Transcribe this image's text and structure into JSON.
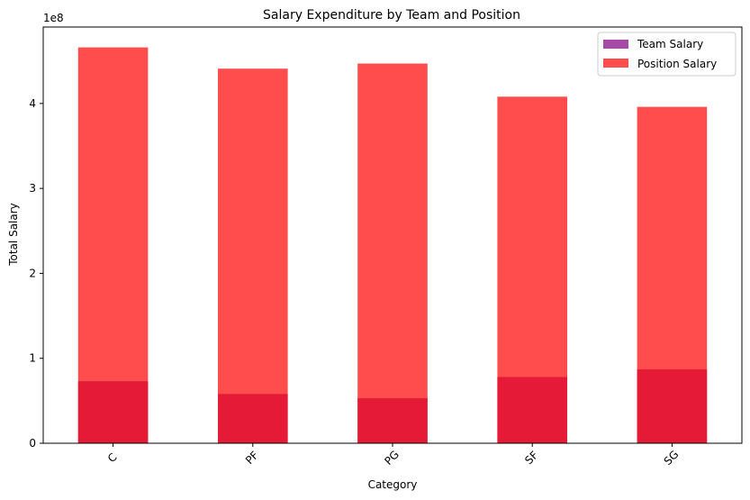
{
  "chart_data": {
    "type": "bar",
    "title": "Salary Expenditure by Team and Position",
    "xlabel": "Category",
    "ylabel": "Total Salary",
    "y_offset_label": "1e8",
    "y_scale": 100000000,
    "categories": [
      "C",
      "PF",
      "PG",
      "SF",
      "SG"
    ],
    "ylim": [
      0,
      490000000
    ],
    "yticks": [
      0,
      100000000,
      200000000,
      300000000,
      400000000
    ],
    "ytick_labels": [
      "0",
      "1",
      "2",
      "3",
      "4"
    ],
    "grid": false,
    "legend_position": "top-right",
    "bar_mode": "overlay",
    "series": [
      {
        "name": "Team Salary",
        "legend_color": "#a64ca6",
        "bar_color": "#e41a37",
        "values": [
          73000000,
          58000000,
          53000000,
          78000000,
          87000000
        ]
      },
      {
        "name": "Position Salary",
        "legend_color": "#ff4d4d",
        "bar_color": "#ff4d4d",
        "values": [
          466000000,
          441000000,
          447000000,
          408000000,
          396000000
        ]
      }
    ]
  }
}
